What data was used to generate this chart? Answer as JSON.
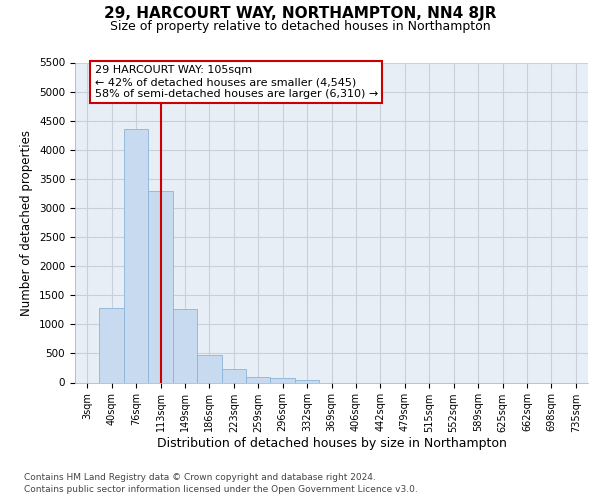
{
  "title": "29, HARCOURT WAY, NORTHAMPTON, NN4 8JR",
  "subtitle": "Size of property relative to detached houses in Northampton",
  "xlabel": "Distribution of detached houses by size in Northampton",
  "ylabel": "Number of detached properties",
  "categories": [
    "3sqm",
    "40sqm",
    "76sqm",
    "113sqm",
    "149sqm",
    "186sqm",
    "223sqm",
    "259sqm",
    "296sqm",
    "332sqm",
    "369sqm",
    "406sqm",
    "442sqm",
    "479sqm",
    "515sqm",
    "552sqm",
    "589sqm",
    "625sqm",
    "662sqm",
    "698sqm",
    "735sqm"
  ],
  "values": [
    0,
    1280,
    4350,
    3300,
    1270,
    480,
    230,
    100,
    75,
    50,
    0,
    0,
    0,
    0,
    0,
    0,
    0,
    0,
    0,
    0,
    0
  ],
  "bar_color": "#c8daef",
  "bar_edgecolor": "#8ab4d8",
  "ylim": [
    0,
    5500
  ],
  "yticks": [
    0,
    500,
    1000,
    1500,
    2000,
    2500,
    3000,
    3500,
    4000,
    4500,
    5000,
    5500
  ],
  "vline_x": 3,
  "property_label": "29 HARCOURT WAY: 105sqm",
  "annotation_line1": "← 42% of detached houses are smaller (4,545)",
  "annotation_line2": "58% of semi-detached houses are larger (6,310) →",
  "vline_color": "#cc0000",
  "annotation_box_edgecolor": "#cc0000",
  "grid_color": "#c8d0dc",
  "background_color": "#e8eef6",
  "footer_line1": "Contains HM Land Registry data © Crown copyright and database right 2024.",
  "footer_line2": "Contains public sector information licensed under the Open Government Licence v3.0."
}
